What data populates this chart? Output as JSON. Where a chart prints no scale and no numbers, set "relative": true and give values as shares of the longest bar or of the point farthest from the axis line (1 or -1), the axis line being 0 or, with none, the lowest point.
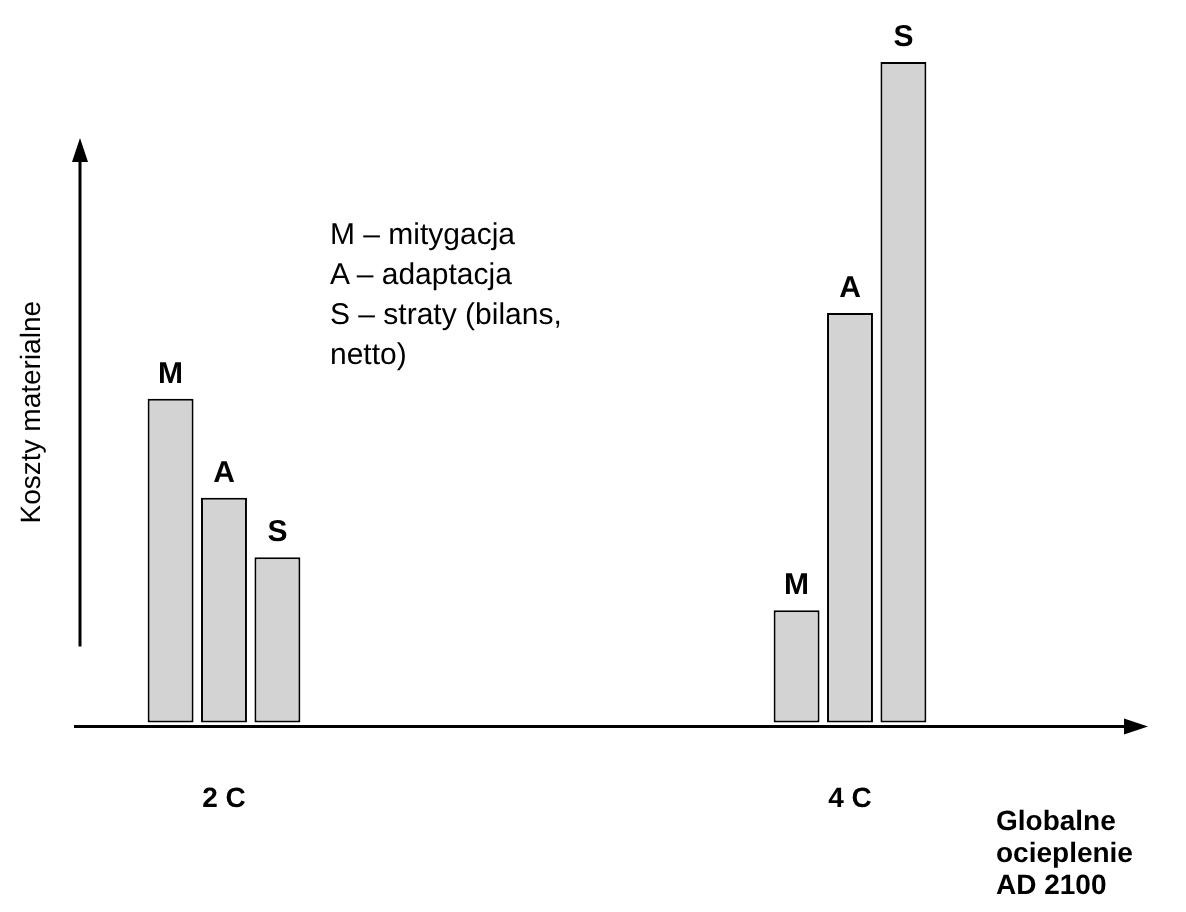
{
  "chart_data": {
    "type": "bar",
    "relative": true,
    "categories": [
      "2 C",
      "4 C"
    ],
    "series": [
      {
        "name": "M",
        "color": "#d3d3d3",
        "values": [
          0.49,
          0.17
        ]
      },
      {
        "name": "A",
        "color": "#d3d3d3",
        "values": [
          0.34,
          0.62
        ]
      },
      {
        "name": "S",
        "color": "#d3d3d3",
        "values": [
          0.25,
          1
        ]
      }
    ],
    "ylabel": "Koszty materialne",
    "xlabel": "Globalne ocieplenie AD 2100",
    "annotations": [
      "M – mitygacja",
      "A – adaptacja",
      "S – straty (bilans, netto)"
    ],
    "legend": false
  }
}
